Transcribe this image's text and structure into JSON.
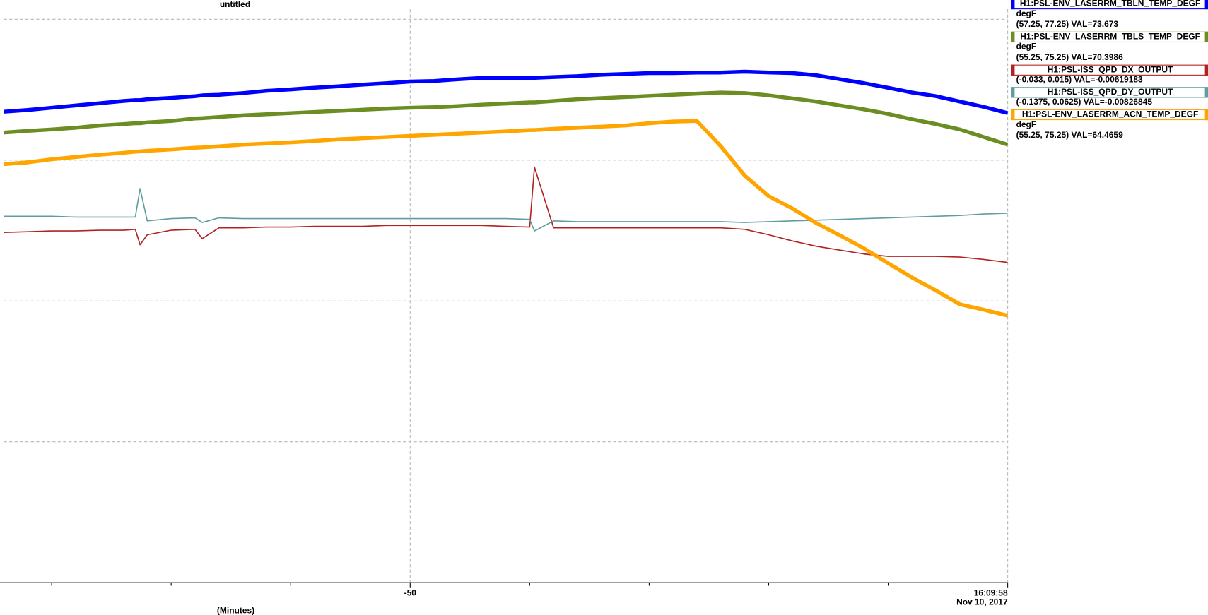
{
  "chart_data": {
    "type": "line",
    "title": "untitled",
    "x_label": "(Minutes)",
    "x_end_date": "Nov 10, 2017",
    "xlim": [
      -84,
      0
    ],
    "xticks": [
      -50,
      {
        "value": 0,
        "label": "16:09:58"
      }
    ],
    "xminor": [
      -80,
      -70,
      -60,
      -40,
      -30,
      -20,
      -10
    ],
    "ylim": [
      57.25,
      77.25
    ],
    "yticks": [
      62.25,
      67.25,
      72.25,
      77.25
    ],
    "grid": true,
    "x": [
      -84,
      -82,
      -80,
      -78,
      -76,
      -74,
      -73,
      -72.6,
      -72,
      -70,
      -68,
      -67.4,
      -66,
      -64,
      -62,
      -60,
      -58,
      -56,
      -54,
      -52,
      -50,
      -48,
      -46,
      -44,
      -42,
      -40,
      -39.6,
      -38,
      -36,
      -34,
      -32,
      -30,
      -28,
      -26,
      -24,
      -22,
      -20,
      -18,
      -16,
      -14,
      -12,
      -10,
      -8,
      -6,
      -4,
      -2,
      0
    ],
    "series": [
      {
        "name": "H1:PSL-ENV_LASERRM_TBLN_TEMP_DEGF",
        "unit": "degF",
        "info": "(57.25, 77.25) VAL=73.673",
        "color": "#0000ff",
        "line_width": 5,
        "ylim": [
          57.25,
          77.25
        ],
        "values": [
          73.97,
          74.03,
          74.11,
          74.19,
          74.27,
          74.35,
          74.38,
          74.38,
          74.41,
          74.46,
          74.52,
          74.55,
          74.57,
          74.63,
          74.71,
          74.76,
          74.82,
          74.87,
          74.93,
          74.98,
          75.04,
          75.06,
          75.12,
          75.17,
          75.17,
          75.17,
          75.17,
          75.2,
          75.23,
          75.28,
          75.31,
          75.34,
          75.34,
          75.36,
          75.36,
          75.39,
          75.36,
          75.34,
          75.26,
          75.12,
          74.98,
          74.82,
          74.65,
          74.52,
          74.33,
          74.14,
          73.92
        ]
      },
      {
        "name": "H1:PSL-ENV_LASERRM_TBLS_TEMP_DEGF",
        "unit": "degF",
        "info": "(55.25, 75.25) VAL=70.3986",
        "color": "#6b8e23",
        "line_width": 5,
        "ylim": [
          55.25,
          75.25
        ],
        "values": [
          71.23,
          71.29,
          71.34,
          71.4,
          71.48,
          71.53,
          71.56,
          71.56,
          71.59,
          71.64,
          71.73,
          71.74,
          71.78,
          71.84,
          71.88,
          71.92,
          71.96,
          72.0,
          72.04,
          72.08,
          72.11,
          72.13,
          72.17,
          72.22,
          72.26,
          72.3,
          72.3,
          72.35,
          72.41,
          72.45,
          72.49,
          72.53,
          72.57,
          72.61,
          72.65,
          72.63,
          72.55,
          72.44,
          72.33,
          72.19,
          72.05,
          71.89,
          71.7,
          71.53,
          71.34,
          71.07,
          70.8
        ]
      },
      {
        "name": "H1:PSL-ISS_QPD_DX_OUTPUT",
        "info": "(-0.033, 0.015) VAL=-0.00619183",
        "color": "#b22222",
        "line_width": 1.5,
        "ylim": [
          -0.033,
          0.015
        ],
        "values": [
          -0.00316,
          -0.0031,
          -0.00303,
          -0.00303,
          -0.00297,
          -0.00297,
          -0.0029,
          -0.00421,
          -0.00336,
          -0.00297,
          -0.0029,
          -0.00369,
          -0.00277,
          -0.00277,
          -0.0027,
          -0.0027,
          -0.00264,
          -0.00264,
          -0.00264,
          -0.00257,
          -0.00257,
          -0.00257,
          -0.00257,
          -0.00257,
          -0.00264,
          -0.0027,
          0.00241,
          -0.00277,
          -0.00277,
          -0.00277,
          -0.00277,
          -0.00277,
          -0.00277,
          -0.00277,
          -0.00277,
          -0.0029,
          -0.00336,
          -0.00389,
          -0.00434,
          -0.00467,
          -0.005,
          -0.0052,
          -0.0052,
          -0.0052,
          -0.00526,
          -0.00546,
          -0.00572
        ]
      },
      {
        "name": "H1:PSL-ISS_QPD_DY_OUTPUT",
        "info": "(-0.1375, 0.0625) VAL=-0.00826845",
        "color": "#5f9ea0",
        "line_width": 1.5,
        "ylim": [
          -0.1375,
          0.0625
        ],
        "values": [
          -0.00744,
          -0.00744,
          -0.00744,
          -0.00771,
          -0.00771,
          -0.00771,
          -0.00771,
          0.0024,
          -0.00908,
          -0.00826,
          -0.00799,
          -0.00963,
          -0.00799,
          -0.00826,
          -0.00826,
          -0.00826,
          -0.00826,
          -0.00826,
          -0.00826,
          -0.00826,
          -0.00826,
          -0.00826,
          -0.00826,
          -0.00826,
          -0.00826,
          -0.00853,
          -0.01263,
          -0.00908,
          -0.00935,
          -0.00935,
          -0.00935,
          -0.00935,
          -0.00935,
          -0.00935,
          -0.00935,
          -0.00963,
          -0.00935,
          -0.00908,
          -0.00881,
          -0.00853,
          -0.00826,
          -0.00799,
          -0.00771,
          -0.00744,
          -0.00717,
          -0.00662,
          -0.00635
        ]
      },
      {
        "name": "H1:PSL-ENV_LASERRM_ACN_TEMP_DEGF",
        "unit": "degF",
        "info": "(55.25, 75.25) VAL=64.4659",
        "color": "#ffa500",
        "line_width": 5,
        "ylim": [
          55.25,
          75.25
        ],
        "values": [
          70.11,
          70.17,
          70.28,
          70.36,
          70.44,
          70.51,
          70.55,
          70.56,
          70.58,
          70.63,
          70.69,
          70.7,
          70.74,
          70.8,
          70.84,
          70.88,
          70.93,
          70.99,
          71.03,
          71.07,
          71.11,
          71.15,
          71.19,
          71.23,
          71.27,
          71.32,
          71.32,
          71.36,
          71.4,
          71.44,
          71.48,
          71.56,
          71.62,
          71.64,
          70.74,
          69.7,
          68.97,
          68.53,
          68.01,
          67.57,
          67.11,
          66.59,
          66.08,
          65.62,
          65.13,
          64.94,
          64.73
        ]
      }
    ]
  }
}
